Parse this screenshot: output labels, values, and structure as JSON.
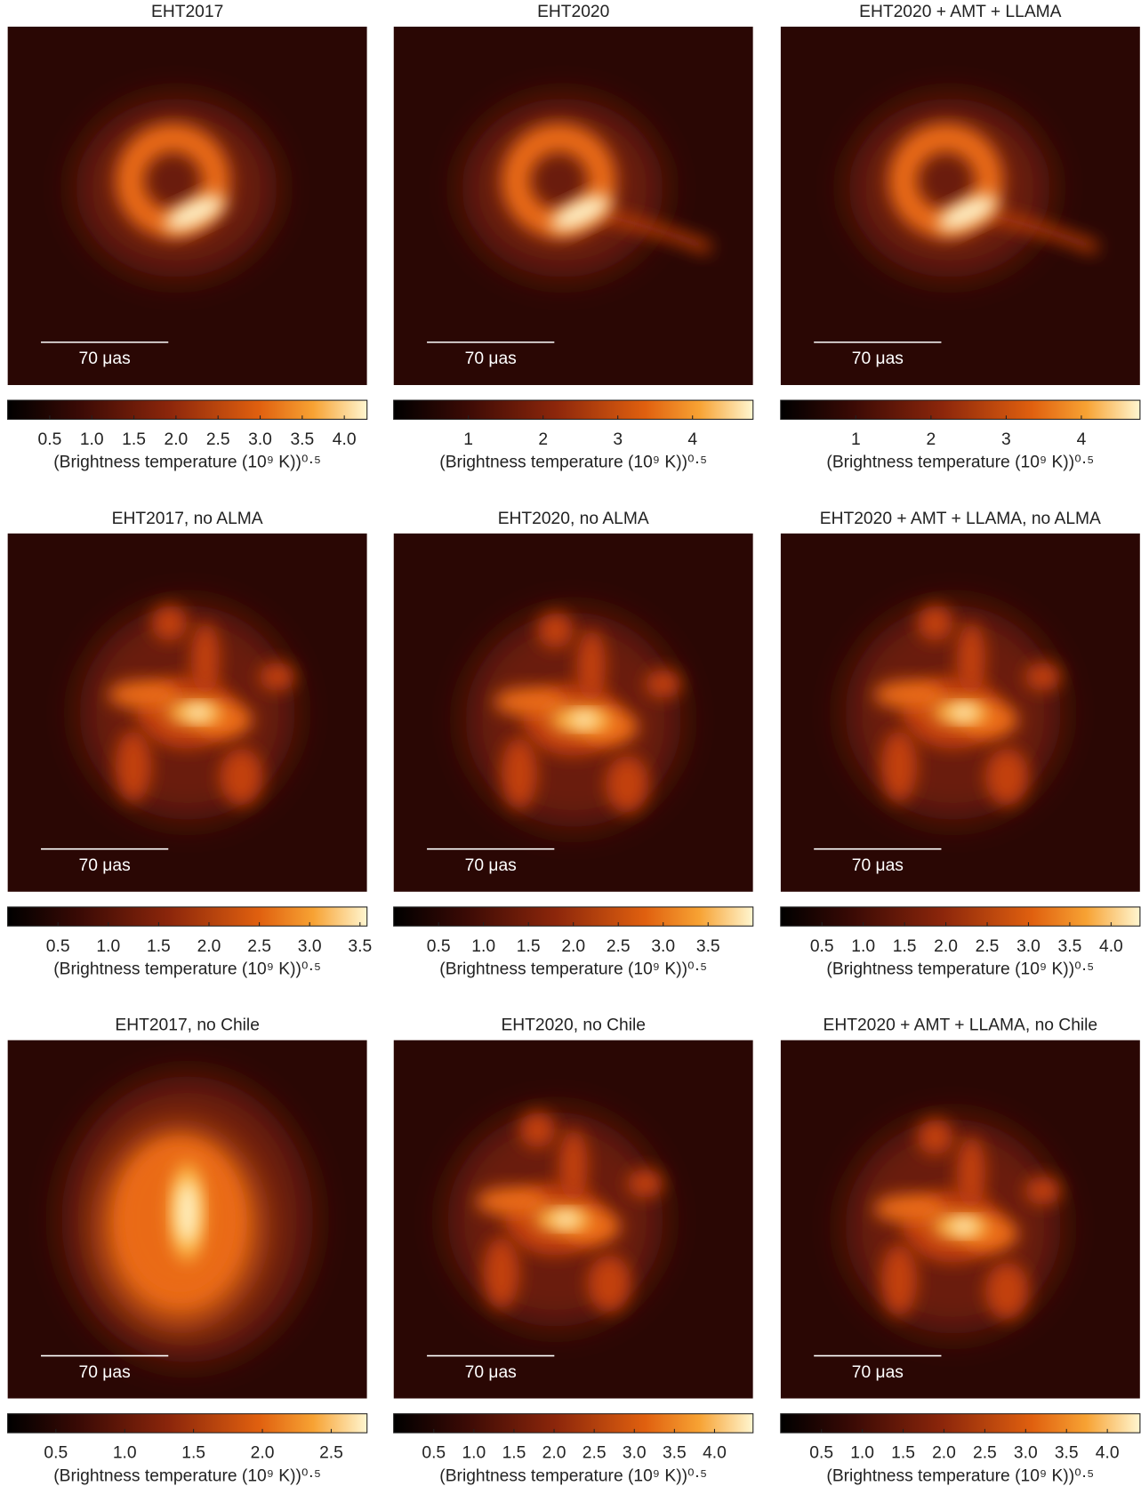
{
  "chart_data": [
    {
      "type": "image",
      "title": "EHT2017",
      "scale_bar_label": "70 μas",
      "xlabel": "(Brightness temperature (10⁹ K))⁰·⁵",
      "xlim": [
        0,
        4.27
      ],
      "xticks": [
        0.5,
        {
          "value": 1,
          "label": "1.0"
        },
        1.5,
        {
          "value": 2,
          "label": "2.0"
        },
        2.5,
        {
          "value": 3,
          "label": "3.0"
        },
        3.5,
        {
          "value": 4,
          "label": "4.0"
        }
      ]
    },
    {
      "type": "image",
      "title": "EHT2020",
      "scale_bar_label": "70 μas",
      "xlabel": "(Brightness temperature (10⁹ K))⁰·⁵",
      "xlim": [
        0,
        4.81
      ],
      "xticks": [
        1,
        2,
        3,
        4
      ]
    },
    {
      "type": "image",
      "title": "EHT2020 + AMT + LLAMA",
      "scale_bar_label": "70 μas",
      "xlabel": "(Brightness temperature (10⁹ K))⁰·⁵",
      "xlim": [
        0,
        4.78
      ],
      "xticks": [
        1,
        2,
        3,
        4
      ]
    },
    {
      "type": "image",
      "title": "EHT2017, no ALMA",
      "scale_bar_label": "70 μas",
      "xlabel": "(Brightness temperature (10⁹ K))⁰·⁵",
      "xlim": [
        0,
        3.57
      ],
      "xticks": [
        0.5,
        {
          "value": 1,
          "label": "1.0"
        },
        1.5,
        {
          "value": 2,
          "label": "2.0"
        },
        2.5,
        {
          "value": 3,
          "label": "3.0"
        },
        3.5
      ]
    },
    {
      "type": "image",
      "title": "EHT2020, no ALMA",
      "scale_bar_label": "70 μas",
      "xlabel": "(Brightness temperature (10⁹ K))⁰·⁵",
      "xlim": [
        0,
        4.0
      ],
      "xticks": [
        0.5,
        {
          "value": 1,
          "label": "1.0"
        },
        1.5,
        {
          "value": 2,
          "label": "2.0"
        },
        2.5,
        {
          "value": 3,
          "label": "3.0"
        },
        3.5
      ]
    },
    {
      "type": "image",
      "title": "EHT2020 + AMT + LLAMA, no ALMA",
      "scale_bar_label": "70 μas",
      "xlabel": "(Brightness temperature (10⁹ K))⁰·⁵",
      "xlim": [
        0,
        4.35
      ],
      "xticks": [
        0.5,
        {
          "value": 1,
          "label": "1.0"
        },
        1.5,
        {
          "value": 2,
          "label": "2.0"
        },
        2.5,
        {
          "value": 3,
          "label": "3.0"
        },
        3.5,
        {
          "value": 4,
          "label": "4.0"
        }
      ]
    },
    {
      "type": "image",
      "title": "EHT2017, no Chile",
      "scale_bar_label": "70 μas",
      "xlabel": "(Brightness temperature (10⁹ K))⁰·⁵",
      "xlim": [
        0.15,
        2.76
      ],
      "xticks": [
        0.5,
        {
          "value": 1,
          "label": "1.0"
        },
        1.5,
        {
          "value": 2,
          "label": "2.0"
        },
        2.5
      ]
    },
    {
      "type": "image",
      "title": "EHT2020, no Chile",
      "scale_bar_label": "70 μas",
      "xlabel": "(Brightness temperature (10⁹ K))⁰·⁵",
      "xlim": [
        0,
        4.48
      ],
      "xticks": [
        0.5,
        {
          "value": 1,
          "label": "1.0"
        },
        1.5,
        {
          "value": 2,
          "label": "2.0"
        },
        2.5,
        {
          "value": 3,
          "label": "3.0"
        },
        3.5,
        {
          "value": 4,
          "label": "4.0"
        }
      ]
    },
    {
      "type": "image",
      "title": "EHT2020 + AMT + LLAMA, no Chile",
      "scale_bar_label": "70 μas",
      "xlabel": "(Brightness temperature (10⁹ K))⁰·⁵",
      "xlim": [
        0,
        4.4
      ],
      "xticks": [
        0.5,
        {
          "value": 1,
          "label": "1.0"
        },
        1.5,
        {
          "value": 2,
          "label": "2.0"
        },
        2.5,
        {
          "value": 3,
          "label": "3.0"
        },
        3.5,
        {
          "value": 4,
          "label": "4.0"
        }
      ]
    }
  ]
}
